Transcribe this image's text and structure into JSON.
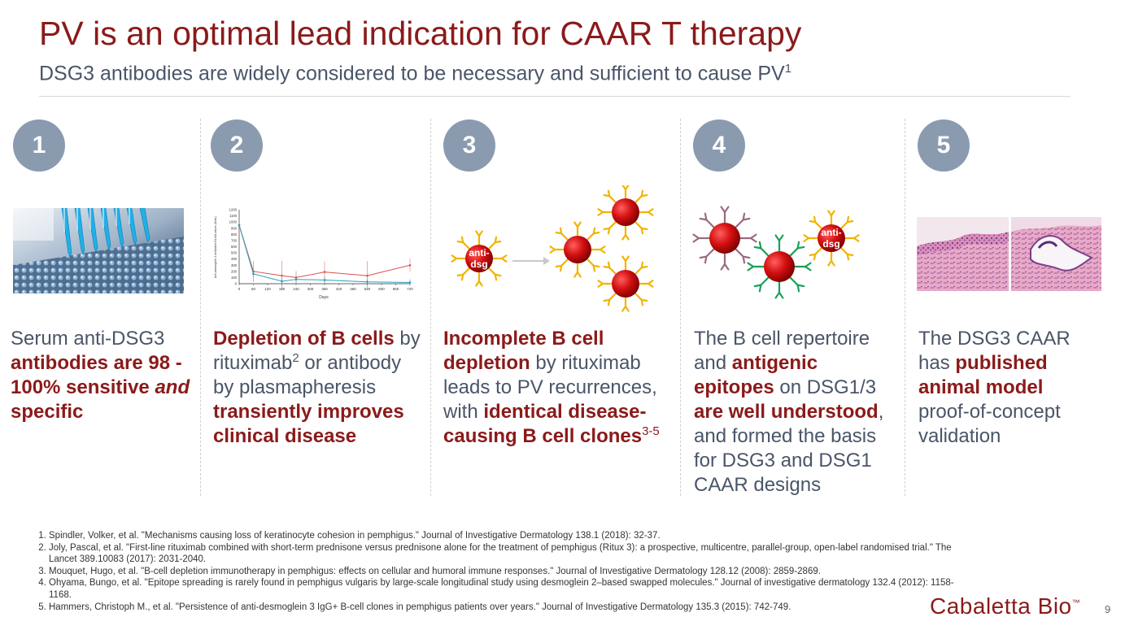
{
  "title": "PV is an optimal lead indication for CAAR T therapy",
  "subtitle": {
    "text": "DSG3 antibodies are widely considered to be necessary and sufficient to cause PV",
    "sup": "1"
  },
  "colors": {
    "accent": "#8b1a1a",
    "circle": "#8a9bb0",
    "body": "#4a5568",
    "cell": "#cc1111",
    "antibody_yellow": "#f0b400",
    "receptor_mauve": "#9a6a80",
    "receptor_green": "#18a058"
  },
  "columns": [
    {
      "num": "1",
      "image": "lab-pipette-plate-photo",
      "t1": "Serum anti-DSG3 ",
      "b1": "antibodies are 98 - 100% sensitive ",
      "i1": "and",
      "b2": " specific"
    },
    {
      "num": "2",
      "image": "antibody-level-line-chart",
      "b1": "Depletion of B cells",
      "t1": " by rituximab",
      "s1": "2",
      "t2": " or antibody by plasmapheresis ",
      "b2": "transiently improves clinical disease"
    },
    {
      "num": "3",
      "image": "b-cell-antibody-diagram",
      "b1": "Incomplete B cell depletion",
      "t1": " by rituximab leads to PV recurrences, with ",
      "b2": "identical disease-causing B cell clones",
      "s1": "3-5"
    },
    {
      "num": "4",
      "image": "b-cell-receptor-diagram",
      "t1": "The B cell repertoire and ",
      "b1": "antigenic epitopes",
      "t2": " on DSG1/3 ",
      "b2": "are well understood",
      "t3": ", and formed the basis for DSG3 and DSG1 CAAR designs"
    },
    {
      "num": "5",
      "image": "histology-tissue-photo",
      "t1": "The DSG3 CAAR has ",
      "b1": "published animal model",
      "t2": " proof-of-concept validation"
    }
  ],
  "diagram_labels": {
    "cell3": "anti-\ndsg",
    "cell4": "anti-\ndsg",
    "cell3_l1": "anti-",
    "cell3_l2": "dsg",
    "cell4_l1": "anti-",
    "cell4_l2": "dsg"
  },
  "chart_data": {
    "type": "line",
    "title": "",
    "xlabel": "Days",
    "ylabel": "Anti-desmoglein 3 antibodies ELISA values (U/mL)",
    "x_ticks": [
      "0",
      "60",
      "120",
      "180",
      "240",
      "300",
      "360",
      "420",
      "480",
      "540",
      "600",
      "660",
      "720"
    ],
    "y_ticks": [
      "0",
      "100",
      "200",
      "300",
      "400",
      "500",
      "600",
      "700",
      "800",
      "900",
      "1000",
      "1100",
      "1200"
    ],
    "xlim": [
      0,
      720
    ],
    "ylim": [
      0,
      1200
    ],
    "series": [
      {
        "color": "#d9534f",
        "x": [
          0,
          60,
          180,
          240,
          360,
          540,
          720
        ],
        "y": [
          950,
          200,
          130,
          100,
          190,
          130,
          300
        ]
      },
      {
        "color": "#2a9fbf",
        "x": [
          0,
          60,
          180,
          240,
          360,
          540,
          720
        ],
        "y": [
          950,
          160,
          40,
          70,
          60,
          30,
          20
        ]
      }
    ]
  },
  "references": [
    "Spindler, Volker, et al. \"Mechanisms causing loss of keratinocyte cohesion in pemphigus.\" Journal of Investigative Dermatology 138.1 (2018): 32-37.",
    "Joly, Pascal, et al. \"First-line rituximab combined with short-term prednisone versus prednisone alone for the treatment of pemphigus (Ritux 3): a prospective, multicentre, parallel-group, open-label randomised trial.\" The Lancet 389.10083 (2017): 2031-2040.",
    "Mouquet, Hugo, et al. \"B-cell depletion immunotherapy in pemphigus: effects on cellular and humoral immune responses.\" Journal of Investigative Dermatology 128.12 (2008): 2859-2869.",
    "Ohyama, Bungo, et al. \"Epitope spreading is rarely found in pemphigus vulgaris by large-scale longitudinal study using desmoglein 2–based swapped molecules.\" Journal of investigative dermatology 132.4 (2012): 1158-1168.",
    "Hammers, Christoph M., et al. \"Persistence of anti-desmoglein 3 IgG+ B-cell clones in pemphigus patients over years.\" Journal of Investigative Dermatology 135.3 (2015): 742-749."
  ],
  "logo": {
    "text": "Cabaletta Bio",
    "tm": "™"
  },
  "page_number": "9"
}
